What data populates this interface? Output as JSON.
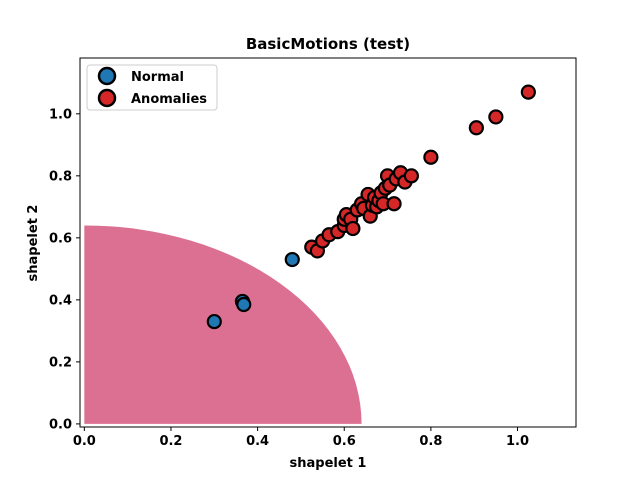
{
  "chart_data": {
    "type": "scatter",
    "title": "BasicMotions (test)",
    "xlabel": "shapelet 1",
    "ylabel": "shapelet 2",
    "xlim": [
      -0.01,
      1.135
    ],
    "ylim": [
      -0.01,
      1.18
    ],
    "xticks": [
      {
        "value": 0.0,
        "label": "0.0"
      },
      {
        "value": 0.2,
        "label": "0.2"
      },
      {
        "value": 0.4,
        "label": "0.4"
      },
      {
        "value": 0.6,
        "label": "0.6"
      },
      {
        "value": 0.8,
        "label": "0.8"
      },
      {
        "value": 1.0,
        "label": "1.0"
      }
    ],
    "yticks": [
      {
        "value": 0.0,
        "label": "0.0"
      },
      {
        "value": 0.2,
        "label": "0.2"
      },
      {
        "value": 0.4,
        "label": "0.4"
      },
      {
        "value": 0.6,
        "label": "0.6"
      },
      {
        "value": 0.8,
        "label": "0.8"
      },
      {
        "value": 1.0,
        "label": "1.0"
      }
    ],
    "grid": false,
    "legend_position": "upper left",
    "decision_region": {
      "shape": "quarter-disc",
      "center": [
        0.0,
        0.0
      ],
      "radius": 0.64,
      "color": "#db7093"
    },
    "series": [
      {
        "name": "Normal",
        "color": "#1f77b4",
        "points": [
          [
            0.3,
            0.33
          ],
          [
            0.365,
            0.395
          ],
          [
            0.368,
            0.385
          ],
          [
            0.48,
            0.53
          ]
        ]
      },
      {
        "name": "Anomalies",
        "color": "#d62728",
        "points": [
          [
            0.525,
            0.57
          ],
          [
            0.538,
            0.558
          ],
          [
            0.55,
            0.59
          ],
          [
            0.565,
            0.61
          ],
          [
            0.585,
            0.62
          ],
          [
            0.6,
            0.64
          ],
          [
            0.6,
            0.66
          ],
          [
            0.605,
            0.675
          ],
          [
            0.615,
            0.66
          ],
          [
            0.62,
            0.63
          ],
          [
            0.63,
            0.69
          ],
          [
            0.64,
            0.71
          ],
          [
            0.645,
            0.695
          ],
          [
            0.655,
            0.74
          ],
          [
            0.66,
            0.67
          ],
          [
            0.665,
            0.705
          ],
          [
            0.67,
            0.73
          ],
          [
            0.675,
            0.7
          ],
          [
            0.68,
            0.72
          ],
          [
            0.685,
            0.745
          ],
          [
            0.69,
            0.71
          ],
          [
            0.695,
            0.76
          ],
          [
            0.7,
            0.8
          ],
          [
            0.705,
            0.77
          ],
          [
            0.715,
            0.71
          ],
          [
            0.72,
            0.79
          ],
          [
            0.73,
            0.81
          ],
          [
            0.74,
            0.78
          ],
          [
            0.755,
            0.8
          ],
          [
            0.8,
            0.86
          ],
          [
            0.905,
            0.955
          ],
          [
            0.95,
            0.99
          ],
          [
            1.025,
            1.07
          ]
        ]
      }
    ]
  }
}
